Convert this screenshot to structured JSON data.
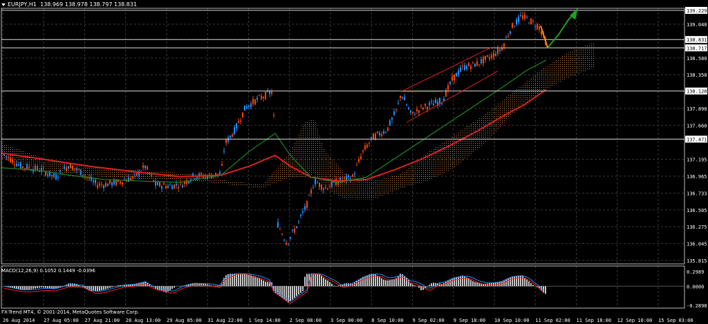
{
  "header": {
    "symbol": "EURJPY,H1",
    "ohlc": "138.969 138.978 138.797 138.831"
  },
  "macd": {
    "label": "MACD(12,26,9) 0.1052 0.1449 -0.0396",
    "level_high": "0.2989",
    "level_zero": "0.0000",
    "level_low": "-0.2898"
  },
  "copyright": "FX-Trend MT4, © 2001-2014, MetaQuotes Software Corp.",
  "price_axis": [
    "139.229",
    "139.040",
    "138.831",
    "138.717",
    "138.580",
    "138.350",
    "138.128",
    "137.890",
    "137.660",
    "137.471",
    "137.195",
    "136.965",
    "136.733",
    "136.505",
    "136.275",
    "136.045",
    "135.815"
  ],
  "highlighted_prices": [
    "139.229",
    "138.831",
    "138.717",
    "138.128",
    "137.471"
  ],
  "time_axis": [
    "26 Aug 2014",
    "27 Aug 05:00",
    "27 Aug 21:00",
    "28 Aug 13:00",
    "29 Aug 05:00",
    "31 Aug 22:00",
    "1 Sep 14:00",
    "2 Sep 08:00",
    "3 Sep 00:00",
    "8 Sep 10:00",
    "9 Sep 02:00",
    "9 Sep 18:00",
    "10 Sep 10:00",
    "11 Sep 02:00",
    "11 Sep 18:00",
    "12 Sep 10:00",
    "15 Sep 03:00"
  ],
  "colors": {
    "bull": "#1E90FF",
    "bear": "#FF4500",
    "ma_fast": "#1F8C1F",
    "ma_slow": "#E02020",
    "cloud": "#F4A460",
    "grid": "#3a3a3a",
    "macd_hist": "#C8C8C8",
    "macd_main": "#1E90FF",
    "macd_signal": "#FF2020"
  }
}
